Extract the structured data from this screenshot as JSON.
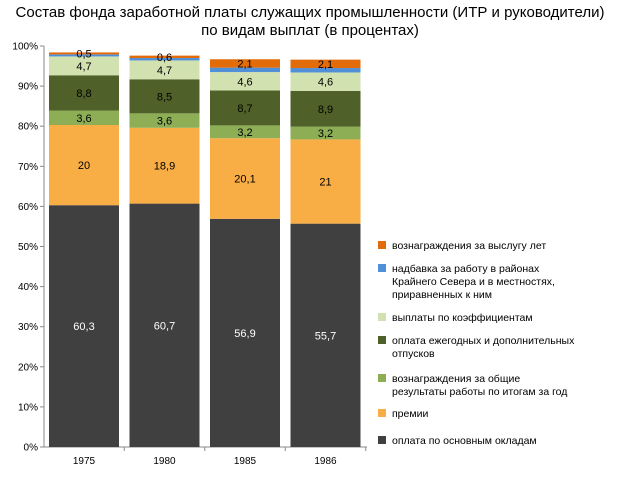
{
  "chart_data": {
    "type": "stacked-bar",
    "title_lines": [
      "Состав фонда заработной платы служащих промышленности (ИТР и руководители)",
      "по видам выплат (в процентах)"
    ],
    "categories": [
      "1975",
      "1980",
      "1985",
      "1986"
    ],
    "ylim": [
      0,
      100
    ],
    "yticks": [
      "0%",
      "10%",
      "20%",
      "30%",
      "40%",
      "50%",
      "60%",
      "70%",
      "80%",
      "90%",
      "100%"
    ],
    "grid": false,
    "legend_position": "right",
    "series": [
      {
        "name": "оплата по основным окладам",
        "legend_lines": [
          "оплата по основным окладам"
        ],
        "color": "#404040",
        "values": [
          60.3,
          60.7,
          56.9,
          55.7
        ],
        "labels": [
          "60,3",
          "60,7",
          "56,9",
          "55,7"
        ]
      },
      {
        "name": "премии",
        "legend_lines": [
          "премии"
        ],
        "color": "#F9AE45",
        "values": [
          20,
          18.9,
          20.1,
          21
        ],
        "labels": [
          "20",
          "18,9",
          "20,1",
          "21"
        ]
      },
      {
        "name": "вознаграждения за общие результаты работы по итогам за год",
        "legend_lines": [
          "вознаграждения за общие",
          "результаты работы по итогам за год"
        ],
        "color": "#8DAE55",
        "values": [
          3.6,
          3.6,
          3.2,
          3.2
        ],
        "labels": [
          "3,6",
          "3,6",
          "3,2",
          "3,2"
        ]
      },
      {
        "name": "оплата ежегодных и дополнительных отпусков",
        "legend_lines": [
          "оплата ежегодных и дополнительных",
          "отпусков"
        ],
        "color": "#4F6128",
        "values": [
          8.8,
          8.5,
          8.7,
          8.9
        ],
        "labels": [
          "8,8",
          "8,5",
          "8,7",
          "8,9"
        ]
      },
      {
        "name": "выплаты по коэффициентам",
        "legend_lines": [
          "выплаты по коэффициентам"
        ],
        "color": "#D2E1B0",
        "values": [
          4.7,
          4.7,
          4.6,
          4.6
        ],
        "labels": [
          "4,7",
          "4,7",
          "4,6",
          "4,6"
        ]
      },
      {
        "name": "надбавка за работу в районах Крайнего Севера и в местностях, приравненных к ним",
        "legend_lines": [
          "надбавка за работу в районах",
          "Крайнего Севера и в местностях,",
          "приравненных к ним"
        ],
        "color": "#4F90D8",
        "values": [
          0.5,
          0.6,
          1.1,
          1.1
        ],
        "labels": [
          "",
          "",
          "",
          ""
        ]
      },
      {
        "name": "вознаграждения за выслугу лет",
        "legend_lines": [
          "вознаграждения за выслугу лет"
        ],
        "color": "#E36C0A",
        "values": [
          0.5,
          0.6,
          2.1,
          2.1
        ],
        "labels": [
          "0,5",
          "0,6",
          "2,1",
          "2,1"
        ]
      }
    ],
    "legend_order": [
      6,
      5,
      4,
      3,
      2,
      1,
      0
    ]
  }
}
